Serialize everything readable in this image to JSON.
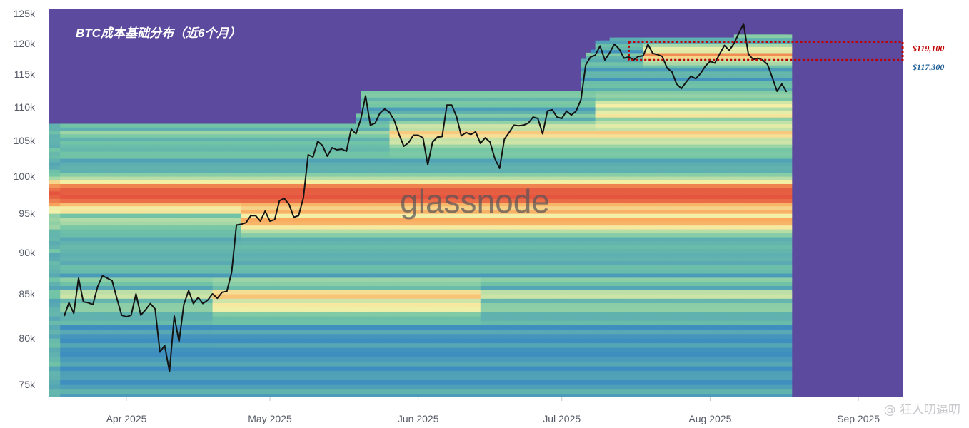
{
  "chart_data": {
    "type": "heatmap",
    "title": "BTC成本基础分布（近6个月）",
    "watermark": "glassnode",
    "credit": "@ 狂人叨逼叨",
    "y_ticks": [
      "125k",
      "120k",
      "115k",
      "110k",
      "105k",
      "100k",
      "95k",
      "90k",
      "85k",
      "80k",
      "75k"
    ],
    "y_values": [
      125000,
      120000,
      115000,
      110000,
      105000,
      100000,
      95000,
      90000,
      85000,
      80000,
      75000
    ],
    "x_ticks": [
      "Apr 2025",
      "May 2025",
      "Jun 2025",
      "Jul 2025",
      "Aug 2025",
      "Sep 2025"
    ],
    "x_tick_days": [
      0,
      30,
      61,
      91,
      122,
      153
    ],
    "x_range_days": [
      -14,
      139
    ],
    "x_origin": "2025-04-01",
    "ylim": [
      73500,
      125500
    ],
    "price_series": {
      "name": "BTC",
      "color": "#141414",
      "x": [
        -13,
        -12,
        -11,
        -10,
        -9,
        -8,
        -7,
        -6,
        -5,
        -4,
        -3,
        -2,
        -1,
        0,
        1,
        2,
        3,
        4,
        5,
        6,
        7,
        8,
        9,
        10,
        11,
        12,
        13,
        14,
        15,
        16,
        17,
        18,
        19,
        20,
        21,
        22,
        23,
        24,
        25,
        26,
        27,
        28,
        29,
        30,
        31,
        32,
        33,
        34,
        35,
        36,
        37,
        38,
        39,
        40,
        41,
        42,
        43,
        44,
        45,
        46,
        47,
        48,
        49,
        50,
        51,
        52,
        53,
        54,
        55,
        56,
        57,
        58,
        59,
        60,
        61,
        62,
        63,
        64,
        65,
        66,
        67,
        68,
        69,
        70,
        71,
        72,
        73,
        74,
        75,
        76,
        77,
        78,
        79,
        80,
        81,
        82,
        83,
        84,
        85,
        86,
        87,
        88,
        89,
        90,
        91,
        92,
        93,
        94,
        95,
        96,
        97,
        98,
        99,
        100,
        101,
        102,
        103,
        104,
        105,
        106,
        107,
        108,
        109,
        110,
        111,
        112,
        113,
        114,
        115,
        116,
        117,
        118,
        119,
        120,
        121,
        122,
        123,
        124,
        125,
        126,
        127,
        128,
        129,
        130,
        131,
        132,
        133,
        134,
        135,
        136,
        137,
        138
      ],
      "y": [
        82500,
        84000,
        82800,
        86900,
        84100,
        84000,
        83800,
        85900,
        87200,
        86900,
        86600,
        84500,
        82600,
        82400,
        82600,
        85000,
        82600,
        83200,
        83900,
        83300,
        78500,
        79200,
        76400,
        82500,
        79600,
        83800,
        85400,
        83900,
        84600,
        83900,
        84300,
        85000,
        84500,
        85200,
        85300,
        87600,
        93500,
        93600,
        93800,
        94700,
        94700,
        94000,
        95300,
        94000,
        94200,
        96700,
        97000,
        96200,
        94500,
        94700,
        97100,
        103000,
        102700,
        104900,
        104300,
        102800,
        104000,
        103700,
        103800,
        103500,
        106700,
        106000,
        108200,
        111700,
        107300,
        107600,
        109100,
        109700,
        109200,
        108000,
        105900,
        104200,
        104700,
        105800,
        105800,
        105400,
        101600,
        104800,
        105500,
        105600,
        110300,
        110300,
        108600,
        105700,
        106200,
        105900,
        106300,
        104600,
        105400,
        104800,
        102500,
        101100,
        105200,
        106200,
        107300,
        107200,
        107300,
        107600,
        108500,
        108300,
        106000,
        109400,
        109600,
        108500,
        108300,
        109400,
        108800,
        109400,
        111100,
        116500,
        117800,
        118100,
        119600,
        117300,
        118500,
        119900,
        119100,
        117600,
        117800,
        117300,
        117900,
        118000,
        119900,
        118400,
        118200,
        117900,
        116000,
        115400,
        113500,
        112800,
        113800,
        114700,
        114300,
        115100,
        116300,
        117100,
        116800,
        118300,
        119700,
        118900,
        120000,
        121700,
        123300,
        118300,
        117400,
        117600,
        117300,
        116600,
        114500,
        112400,
        113500,
        112300,
        116800,
        115600,
        113000,
        111300,
        110400,
        111800
      ]
    },
    "annotations": [
      {
        "label": "$119,100",
        "value": 119100,
        "color": "#c00000"
      },
      {
        "label": "$117,300",
        "value": 117300,
        "color": "#1f5f96"
      }
    ],
    "highlight_box": {
      "x_days": [
        105,
        139
      ],
      "y_values": [
        117300,
        120300
      ],
      "color": "#c00000",
      "style": "dotted"
    },
    "colors": {
      "background_band": "#5b4a9e",
      "low_density": "#3e8ec0",
      "mid_density": "#74c6a5",
      "high_density": "#f4f1a9",
      "peak_density": "#ef6a45",
      "price_line": "#141414"
    }
  }
}
